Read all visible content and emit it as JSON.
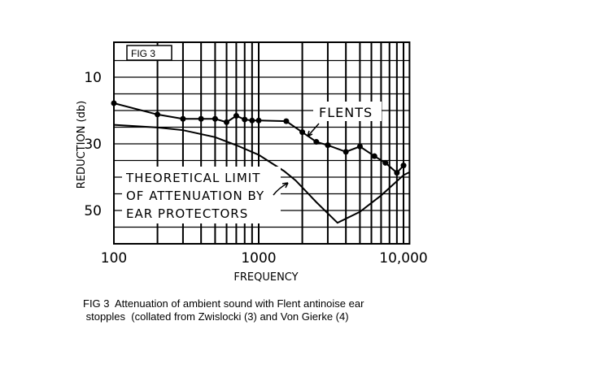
{
  "chart_data": {
    "type": "line",
    "figure_label": "FIG 3",
    "xlabel": "FREQUENCY",
    "ylabel": "REDUCTION (db)",
    "x_scale": "log",
    "xlim": [
      100,
      11000
    ],
    "ylim": [
      60,
      0
    ],
    "y_inverted": true,
    "grid": true,
    "x_tick_labels": [
      {
        "value": 100,
        "label": "100"
      },
      {
        "value": 1000,
        "label": "1000"
      },
      {
        "value": 10000,
        "label": "10,000"
      }
    ],
    "y_tick_labels": [
      {
        "value": 10,
        "label": "10"
      },
      {
        "value": 30,
        "label": "30"
      },
      {
        "value": 50,
        "label": "50"
      }
    ],
    "series": [
      {
        "name": "FLENTS",
        "markers": true,
        "x": [
          100,
          200,
          300,
          400,
          500,
          600,
          700,
          800,
          900,
          1000,
          1550,
          2000,
          2500,
          3000,
          4000,
          5000,
          6300,
          7500,
          9000,
          10000
        ],
        "y": [
          17.8,
          21.2,
          22.5,
          22.5,
          22.5,
          23.5,
          21.6,
          22.7,
          23,
          23,
          23.2,
          26.5,
          29.4,
          30.4,
          32.4,
          30.8,
          33.7,
          35.7,
          38.7,
          36.5
        ]
      },
      {
        "name": "THEORETICAL LIMIT OF ATTENUATION BY EAR PROTECTORS",
        "markers": false,
        "x": [
          100,
          200,
          300,
          500,
          700,
          1000,
          1500,
          1800,
          2500,
          3500,
          5000,
          7000,
          10000,
          11000
        ],
        "y": [
          24.3,
          25.1,
          25.9,
          28,
          30.4,
          33.3,
          38.2,
          41,
          47.5,
          53.7,
          50.4,
          45.5,
          39.4,
          38.5
        ]
      }
    ],
    "annotations": [
      {
        "text_lines": [
          "FLENTS"
        ]
      },
      {
        "text_lines": [
          "THEORETICAL LIMIT",
          "OF ATTENUATION BY",
          "EAR PROTECTORS"
        ]
      }
    ],
    "caption_lines": [
      "FIG 3  Attenuation of ambient sound with Flent antinoise ear",
      " stopples  (collated from Zwislocki (3) and Von Gierke (4)"
    ]
  }
}
